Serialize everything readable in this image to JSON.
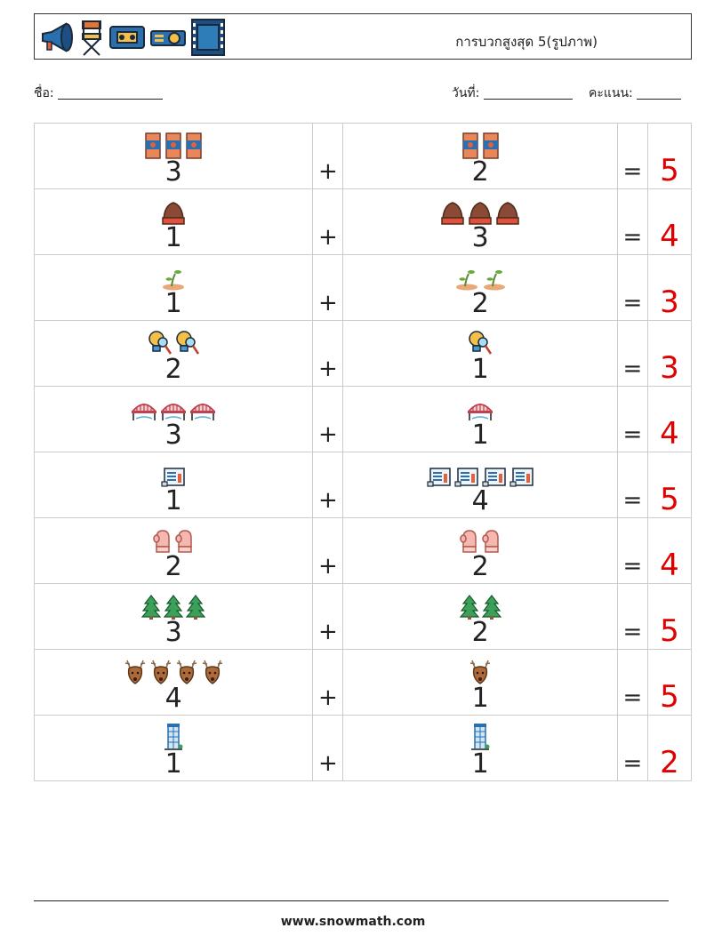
{
  "header": {
    "title": "การบวกสูงสุด 5(รูปภาพ)",
    "icons": [
      "megaphone-icon",
      "director-chair-icon",
      "vhs-tape-icon",
      "projector-icon",
      "film-frame-icon"
    ]
  },
  "fields": {
    "name_label": "ชื่อ:",
    "date_label": "วันที่:",
    "score_label": "คะแนน:"
  },
  "problems": [
    {
      "a": 3,
      "b": 2,
      "answer": 5,
      "icon": "canned-food-icon"
    },
    {
      "a": 1,
      "b": 3,
      "answer": 4,
      "icon": "winter-hat-icon"
    },
    {
      "a": 1,
      "b": 2,
      "answer": 3,
      "icon": "sprout-icon"
    },
    {
      "a": 2,
      "b": 1,
      "answer": 3,
      "icon": "idea-search-icon"
    },
    {
      "a": 3,
      "b": 1,
      "answer": 4,
      "icon": "bridge-icon"
    },
    {
      "a": 1,
      "b": 4,
      "answer": 5,
      "icon": "chart-document-icon"
    },
    {
      "a": 2,
      "b": 2,
      "answer": 4,
      "icon": "mittens-icon"
    },
    {
      "a": 3,
      "b": 2,
      "answer": 5,
      "icon": "pine-tree-icon"
    },
    {
      "a": 4,
      "b": 1,
      "answer": 5,
      "icon": "reindeer-icon"
    },
    {
      "a": 1,
      "b": 1,
      "answer": 2,
      "icon": "building-icon"
    }
  ],
  "symbols": {
    "plus": "+",
    "equals": "="
  },
  "footer": {
    "site": "www.snowmath.com"
  }
}
